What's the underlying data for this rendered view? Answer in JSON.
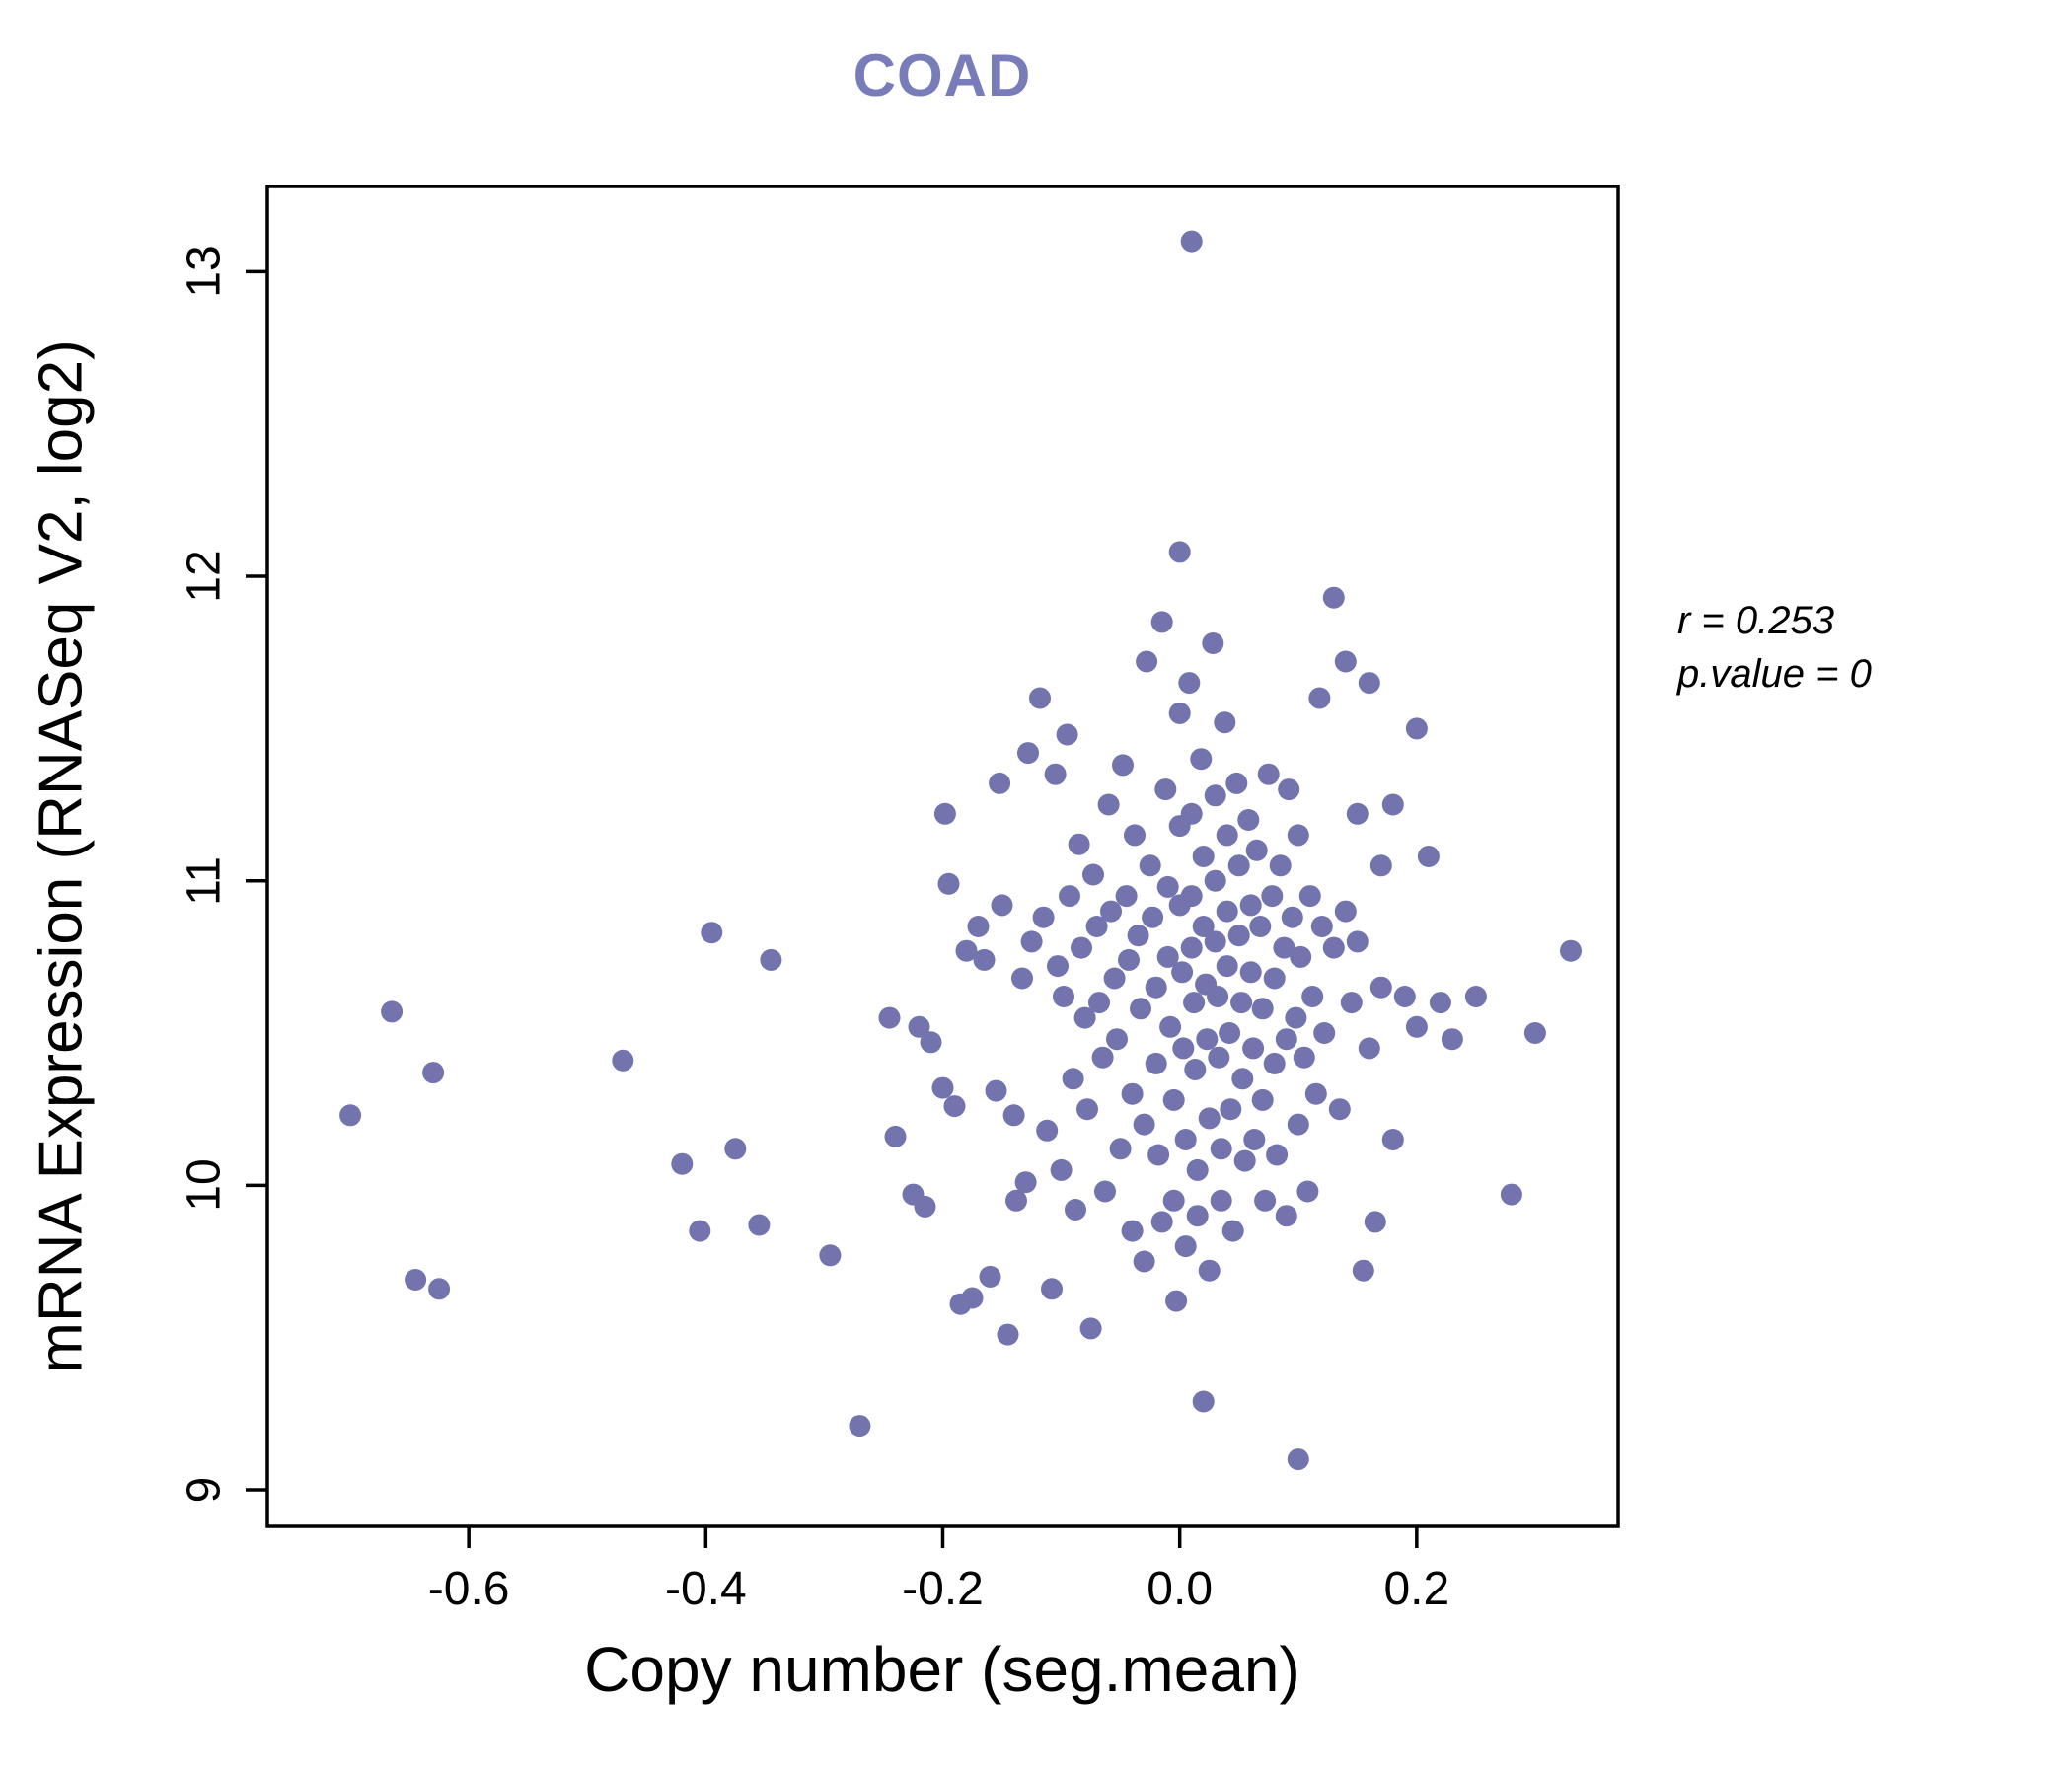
{
  "title_color": "#787db9",
  "annotation": {
    "line1": "r = 0.253",
    "line2": "p.value = 0"
  },
  "chart_data": {
    "type": "scatter",
    "title": "COAD",
    "xlabel": "Copy number (seg.mean)",
    "ylabel": "mRNA Expression (RNASeq V2, log2)",
    "xlim": [
      -0.77,
      0.37
    ],
    "ylim": [
      8.88,
      13.28
    ],
    "xticks": [
      -0.6,
      -0.4,
      -0.2,
      0.0,
      0.2
    ],
    "xtick_labels": [
      "-0.6",
      "-0.4",
      "-0.2",
      "0.0",
      "0.2"
    ],
    "yticks": [
      9,
      10,
      11,
      12,
      13
    ],
    "ytick_labels": [
      "9",
      "10",
      "11",
      "12",
      "13"
    ],
    "grid": false,
    "legend": "none",
    "point_color": "#7373ae",
    "point_radius": 11,
    "annotations": [
      "r = 0.253",
      "p.value = 0"
    ],
    "points": [
      [
        -0.7,
        10.23
      ],
      [
        -0.665,
        10.57
      ],
      [
        -0.63,
        10.37
      ],
      [
        -0.645,
        9.69
      ],
      [
        -0.625,
        9.66
      ],
      [
        -0.47,
        10.41
      ],
      [
        -0.42,
        10.07
      ],
      [
        -0.405,
        9.85
      ],
      [
        -0.395,
        10.83
      ],
      [
        -0.375,
        10.12
      ],
      [
        -0.345,
        10.74
      ],
      [
        -0.355,
        9.87
      ],
      [
        -0.295,
        9.77
      ],
      [
        -0.27,
        9.21
      ],
      [
        -0.245,
        10.55
      ],
      [
        -0.24,
        10.16
      ],
      [
        -0.225,
        9.97
      ],
      [
        -0.22,
        10.52
      ],
      [
        -0.215,
        9.93
      ],
      [
        -0.21,
        10.47
      ],
      [
        -0.2,
        10.32
      ],
      [
        -0.198,
        11.22
      ],
      [
        -0.195,
        10.99
      ],
      [
        -0.19,
        10.26
      ],
      [
        -0.185,
        9.61
      ],
      [
        -0.18,
        10.77
      ],
      [
        -0.175,
        9.63
      ],
      [
        -0.17,
        10.85
      ],
      [
        -0.165,
        10.74
      ],
      [
        -0.16,
        9.7
      ],
      [
        -0.155,
        10.31
      ],
      [
        -0.152,
        11.32
      ],
      [
        -0.15,
        10.92
      ],
      [
        -0.145,
        9.51
      ],
      [
        -0.14,
        10.23
      ],
      [
        -0.138,
        9.95
      ],
      [
        -0.133,
        10.68
      ],
      [
        -0.13,
        10.01
      ],
      [
        -0.128,
        11.42
      ],
      [
        -0.125,
        10.8
      ],
      [
        -0.118,
        11.6
      ],
      [
        -0.115,
        10.88
      ],
      [
        -0.112,
        10.18
      ],
      [
        -0.108,
        9.66
      ],
      [
        -0.105,
        11.35
      ],
      [
        -0.103,
        10.72
      ],
      [
        -0.1,
        10.05
      ],
      [
        -0.098,
        10.62
      ],
      [
        -0.095,
        11.48
      ],
      [
        -0.093,
        10.95
      ],
      [
        -0.09,
        10.35
      ],
      [
        -0.088,
        9.92
      ],
      [
        -0.085,
        11.12
      ],
      [
        -0.083,
        10.78
      ],
      [
        -0.08,
        10.55
      ],
      [
        -0.078,
        10.25
      ],
      [
        -0.075,
        9.53
      ],
      [
        -0.073,
        11.02
      ],
      [
        -0.07,
        10.85
      ],
      [
        -0.068,
        10.6
      ],
      [
        -0.065,
        10.42
      ],
      [
        -0.063,
        9.98
      ],
      [
        -0.06,
        11.25
      ],
      [
        -0.058,
        10.9
      ],
      [
        -0.055,
        10.68
      ],
      [
        -0.053,
        10.48
      ],
      [
        -0.05,
        10.12
      ],
      [
        -0.048,
        11.38
      ],
      [
        -0.045,
        10.95
      ],
      [
        -0.043,
        10.74
      ],
      [
        -0.04,
        10.3
      ],
      [
        -0.04,
        9.85
      ],
      [
        -0.038,
        11.15
      ],
      [
        -0.035,
        10.82
      ],
      [
        -0.033,
        10.58
      ],
      [
        -0.03,
        10.2
      ],
      [
        -0.03,
        9.75
      ],
      [
        -0.028,
        11.72
      ],
      [
        -0.025,
        11.05
      ],
      [
        -0.023,
        10.88
      ],
      [
        -0.02,
        10.65
      ],
      [
        -0.02,
        10.4
      ],
      [
        -0.018,
        10.1
      ],
      [
        -0.015,
        9.88
      ],
      [
        -0.015,
        11.85
      ],
      [
        -0.012,
        11.3
      ],
      [
        -0.01,
        10.98
      ],
      [
        -0.01,
        10.75
      ],
      [
        -0.008,
        10.52
      ],
      [
        -0.005,
        10.28
      ],
      [
        -0.005,
        9.95
      ],
      [
        -0.003,
        9.62
      ],
      [
        0.0,
        12.08
      ],
      [
        0.0,
        11.55
      ],
      [
        0.0,
        11.18
      ],
      [
        0.0,
        10.92
      ],
      [
        0.002,
        10.7
      ],
      [
        0.003,
        10.45
      ],
      [
        0.005,
        10.15
      ],
      [
        0.005,
        9.8
      ],
      [
        0.008,
        11.65
      ],
      [
        0.01,
        13.1
      ],
      [
        0.01,
        11.22
      ],
      [
        0.01,
        10.95
      ],
      [
        0.01,
        10.78
      ],
      [
        0.012,
        10.6
      ],
      [
        0.013,
        10.38
      ],
      [
        0.015,
        10.05
      ],
      [
        0.015,
        9.9
      ],
      [
        0.018,
        11.4
      ],
      [
        0.02,
        11.08
      ],
      [
        0.02,
        10.85
      ],
      [
        0.02,
        9.29
      ],
      [
        0.022,
        10.66
      ],
      [
        0.023,
        10.48
      ],
      [
        0.025,
        10.22
      ],
      [
        0.025,
        9.72
      ],
      [
        0.028,
        11.78
      ],
      [
        0.03,
        11.28
      ],
      [
        0.03,
        11.0
      ],
      [
        0.03,
        10.8
      ],
      [
        0.032,
        10.62
      ],
      [
        0.033,
        10.42
      ],
      [
        0.035,
        10.12
      ],
      [
        0.035,
        9.95
      ],
      [
        0.038,
        11.52
      ],
      [
        0.04,
        11.15
      ],
      [
        0.04,
        10.9
      ],
      [
        0.04,
        10.72
      ],
      [
        0.042,
        10.5
      ],
      [
        0.043,
        10.25
      ],
      [
        0.045,
        9.85
      ],
      [
        0.048,
        11.32
      ],
      [
        0.05,
        11.05
      ],
      [
        0.05,
        10.82
      ],
      [
        0.052,
        10.6
      ],
      [
        0.053,
        10.35
      ],
      [
        0.055,
        10.08
      ],
      [
        0.058,
        11.2
      ],
      [
        0.06,
        10.92
      ],
      [
        0.06,
        10.7
      ],
      [
        0.062,
        10.45
      ],
      [
        0.063,
        10.15
      ],
      [
        0.065,
        11.1
      ],
      [
        0.068,
        10.85
      ],
      [
        0.07,
        10.58
      ],
      [
        0.07,
        10.28
      ],
      [
        0.072,
        9.95
      ],
      [
        0.075,
        11.35
      ],
      [
        0.078,
        10.95
      ],
      [
        0.08,
        10.68
      ],
      [
        0.08,
        10.4
      ],
      [
        0.082,
        10.1
      ],
      [
        0.085,
        11.05
      ],
      [
        0.088,
        10.78
      ],
      [
        0.09,
        10.48
      ],
      [
        0.09,
        9.9
      ],
      [
        0.092,
        11.3
      ],
      [
        0.095,
        10.88
      ],
      [
        0.098,
        10.55
      ],
      [
        0.1,
        10.2
      ],
      [
        0.1,
        11.15
      ],
      [
        0.102,
        10.75
      ],
      [
        0.105,
        10.42
      ],
      [
        0.1,
        9.1
      ],
      [
        0.108,
        9.98
      ],
      [
        0.11,
        10.95
      ],
      [
        0.112,
        10.62
      ],
      [
        0.115,
        10.3
      ],
      [
        0.118,
        11.6
      ],
      [
        0.12,
        10.85
      ],
      [
        0.122,
        10.5
      ],
      [
        0.13,
        11.93
      ],
      [
        0.13,
        10.78
      ],
      [
        0.135,
        10.25
      ],
      [
        0.14,
        11.72
      ],
      [
        0.14,
        10.9
      ],
      [
        0.145,
        10.6
      ],
      [
        0.15,
        11.22
      ],
      [
        0.15,
        10.8
      ],
      [
        0.155,
        9.72
      ],
      [
        0.16,
        11.65
      ],
      [
        0.16,
        10.45
      ],
      [
        0.165,
        9.88
      ],
      [
        0.17,
        11.05
      ],
      [
        0.17,
        10.65
      ],
      [
        0.18,
        11.25
      ],
      [
        0.18,
        10.15
      ],
      [
        0.19,
        10.62
      ],
      [
        0.2,
        11.5
      ],
      [
        0.2,
        10.52
      ],
      [
        0.21,
        11.08
      ],
      [
        0.22,
        10.6
      ],
      [
        0.23,
        10.48
      ],
      [
        0.25,
        10.62
      ],
      [
        0.28,
        9.97
      ],
      [
        0.3,
        10.5
      ],
      [
        0.33,
        10.77
      ]
    ]
  }
}
